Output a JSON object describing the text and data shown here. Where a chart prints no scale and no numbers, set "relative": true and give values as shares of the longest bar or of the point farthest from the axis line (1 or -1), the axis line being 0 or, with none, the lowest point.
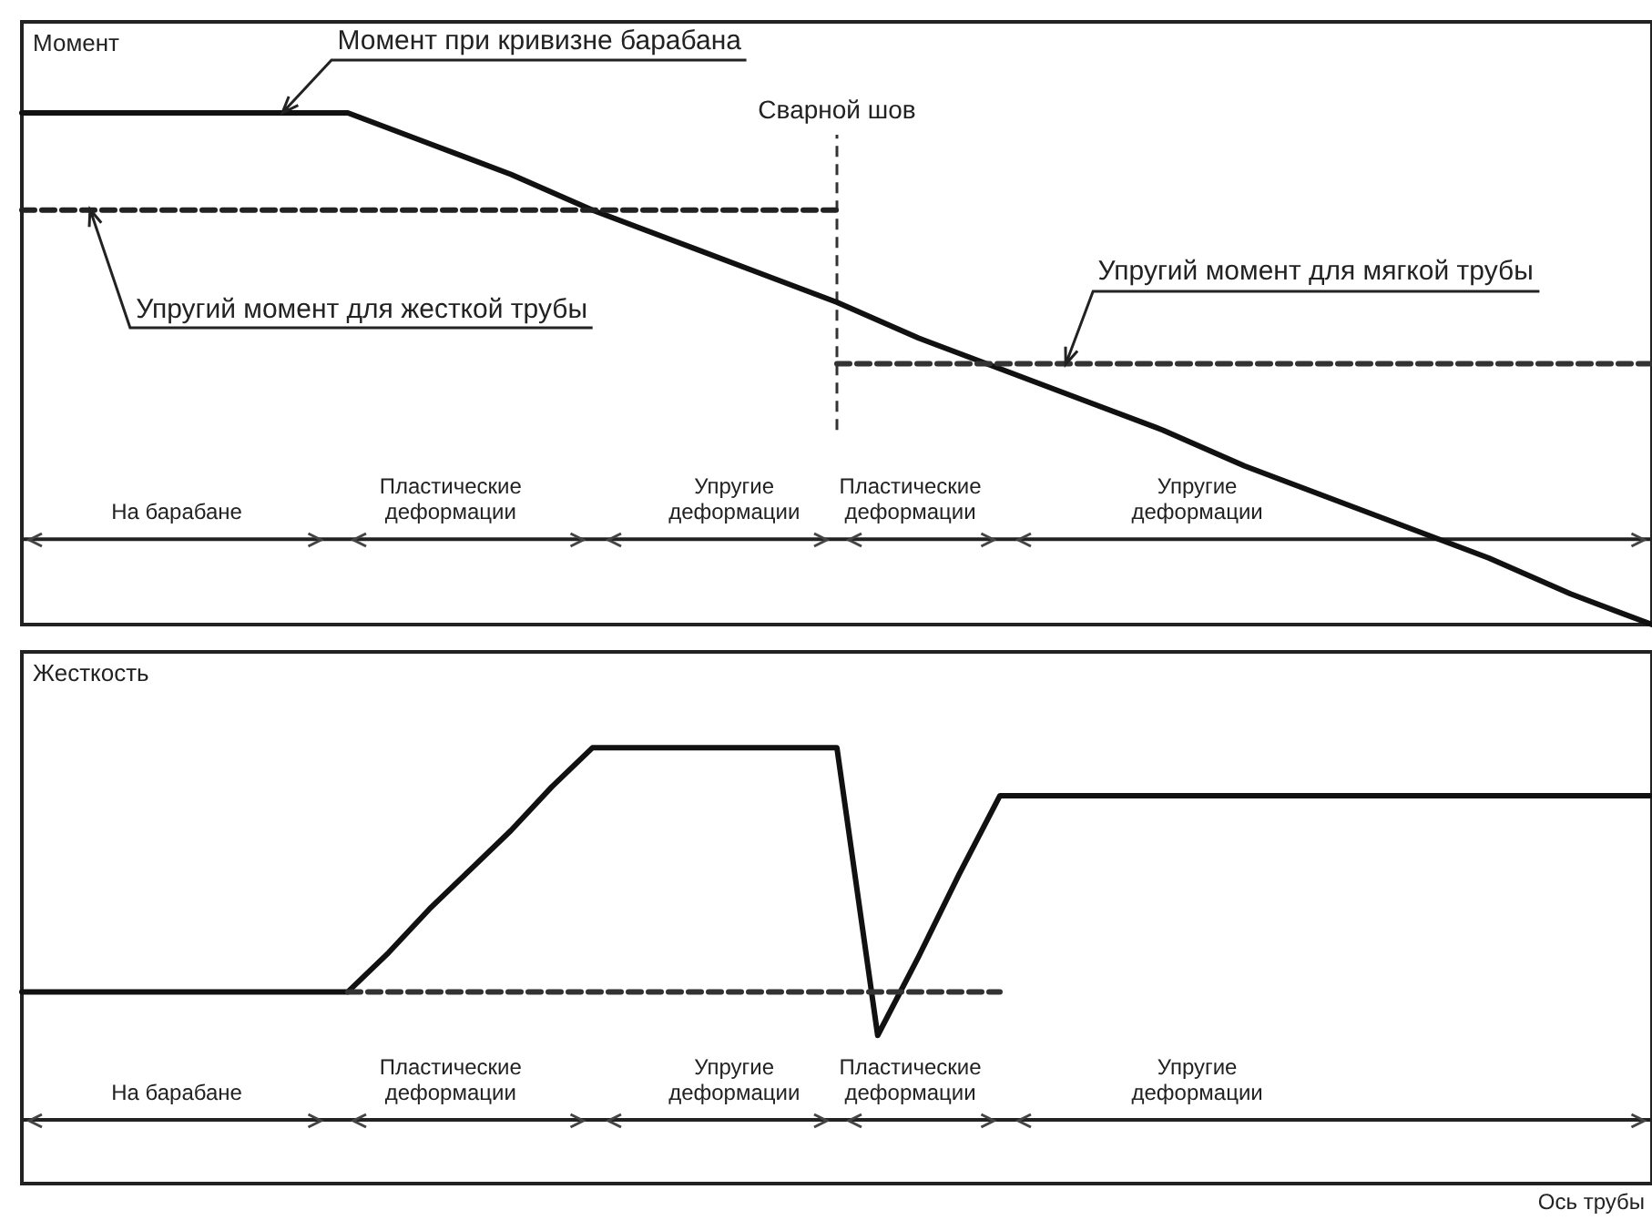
{
  "chart_data": [
    {
      "type": "line",
      "ylabel": "Момент",
      "relative": true,
      "tick_labels": false,
      "categories": [
        null,
        null,
        null,
        null,
        null,
        null,
        null,
        null,
        null,
        null,
        null,
        null,
        null,
        null,
        null,
        null,
        null,
        null,
        null,
        null,
        null
      ],
      "series": [
        {
          "color": "#111111",
          "line_style": "solid",
          "values": [
            1,
            1,
            1,
            1,
            1,
            0.94,
            0.88,
            0.81,
            0.75,
            0.69,
            0.63,
            0.56,
            0.5,
            0.44,
            0.38,
            0.31,
            0.25,
            0.19,
            0.13,
            0.06,
            0
          ]
        },
        {
          "color": "#222222",
          "line_style": "dashed",
          "values": [
            0.81,
            0.81,
            0.81,
            0.81,
            0.81,
            0.81,
            0.81,
            0.81,
            0.81,
            0.81,
            0.81,
            null,
            null,
            null,
            null,
            null,
            null,
            null,
            null,
            null,
            null
          ]
        },
        {
          "color": "#333333",
          "line_style": "dashed",
          "values": [
            null,
            null,
            null,
            null,
            null,
            null,
            null,
            null,
            null,
            null,
            0.51,
            0.51,
            0.51,
            0.51,
            0.51,
            0.51,
            0.51,
            0.51,
            0.51,
            0.51,
            0.51
          ]
        }
      ],
      "ref_lines": [
        {
          "axis": "y",
          "value": 0.167,
          "line_style": "solid",
          "color": "#222222"
        }
      ],
      "annotations": [
        "Момент при кривизне барабана",
        "Упругий момент для жесткой трубы",
        "Упругий момент для мягкой трубы",
        "Сварной шов",
        "На барабане",
        "Пластические\nдеформации",
        "Упругие\nдеформации",
        "Пластические\nдеформации",
        "Упругие\nдеформации"
      ]
    },
    {
      "type": "line",
      "ylabel": "Жесткость",
      "xlabel": "Ось трубы",
      "relative": true,
      "tick_labels": false,
      "categories": [
        null,
        null,
        null,
        null,
        null,
        null,
        null,
        null,
        null,
        null,
        null,
        null,
        null,
        null,
        null,
        null,
        null,
        null,
        null,
        null,
        null,
        null,
        null,
        null,
        null,
        null,
        null,
        null,
        null,
        null,
        null,
        null,
        null,
        null,
        null,
        null,
        null,
        null,
        null,
        null,
        null
      ],
      "series": [
        {
          "color": "#111111",
          "line_style": "solid",
          "values": [
            0.44,
            0.44,
            0.44,
            0.44,
            0.44,
            0.44,
            0.44,
            0.44,
            0.44,
            0.53,
            0.63,
            0.72,
            0.81,
            0.91,
            1,
            1,
            1,
            1,
            1,
            1,
            1,
            0.34,
            0.52,
            0.71,
            0.89,
            0.89,
            0.89,
            0.89,
            0.89,
            0.89,
            0.89,
            0.89,
            0.89,
            0.89,
            0.89,
            0.89,
            0.89,
            0.89,
            0.89,
            0.89,
            0.89
          ]
        },
        {
          "color": "#333333",
          "line_style": "dashed",
          "values": [
            null,
            null,
            null,
            null,
            null,
            null,
            null,
            null,
            0.44,
            0.44,
            0.44,
            0.44,
            0.44,
            0.44,
            0.44,
            0.44,
            0.44,
            0.44,
            0.44,
            0.44,
            0.44,
            0.44,
            0.44,
            0.44,
            0.44,
            null,
            null,
            null,
            null,
            null,
            null,
            null,
            null,
            null,
            null,
            null,
            null,
            null,
            null,
            null,
            null
          ]
        }
      ],
      "ref_lines": [
        {
          "axis": "y",
          "value": 0.146,
          "line_style": "solid",
          "color": "#222222"
        }
      ],
      "annotations": [
        "На барабане",
        "Пластические\nдеформации",
        "Упругие\nдеформации",
        "Пластические\nдеформации",
        "Упругие\nдеформации"
      ]
    }
  ]
}
